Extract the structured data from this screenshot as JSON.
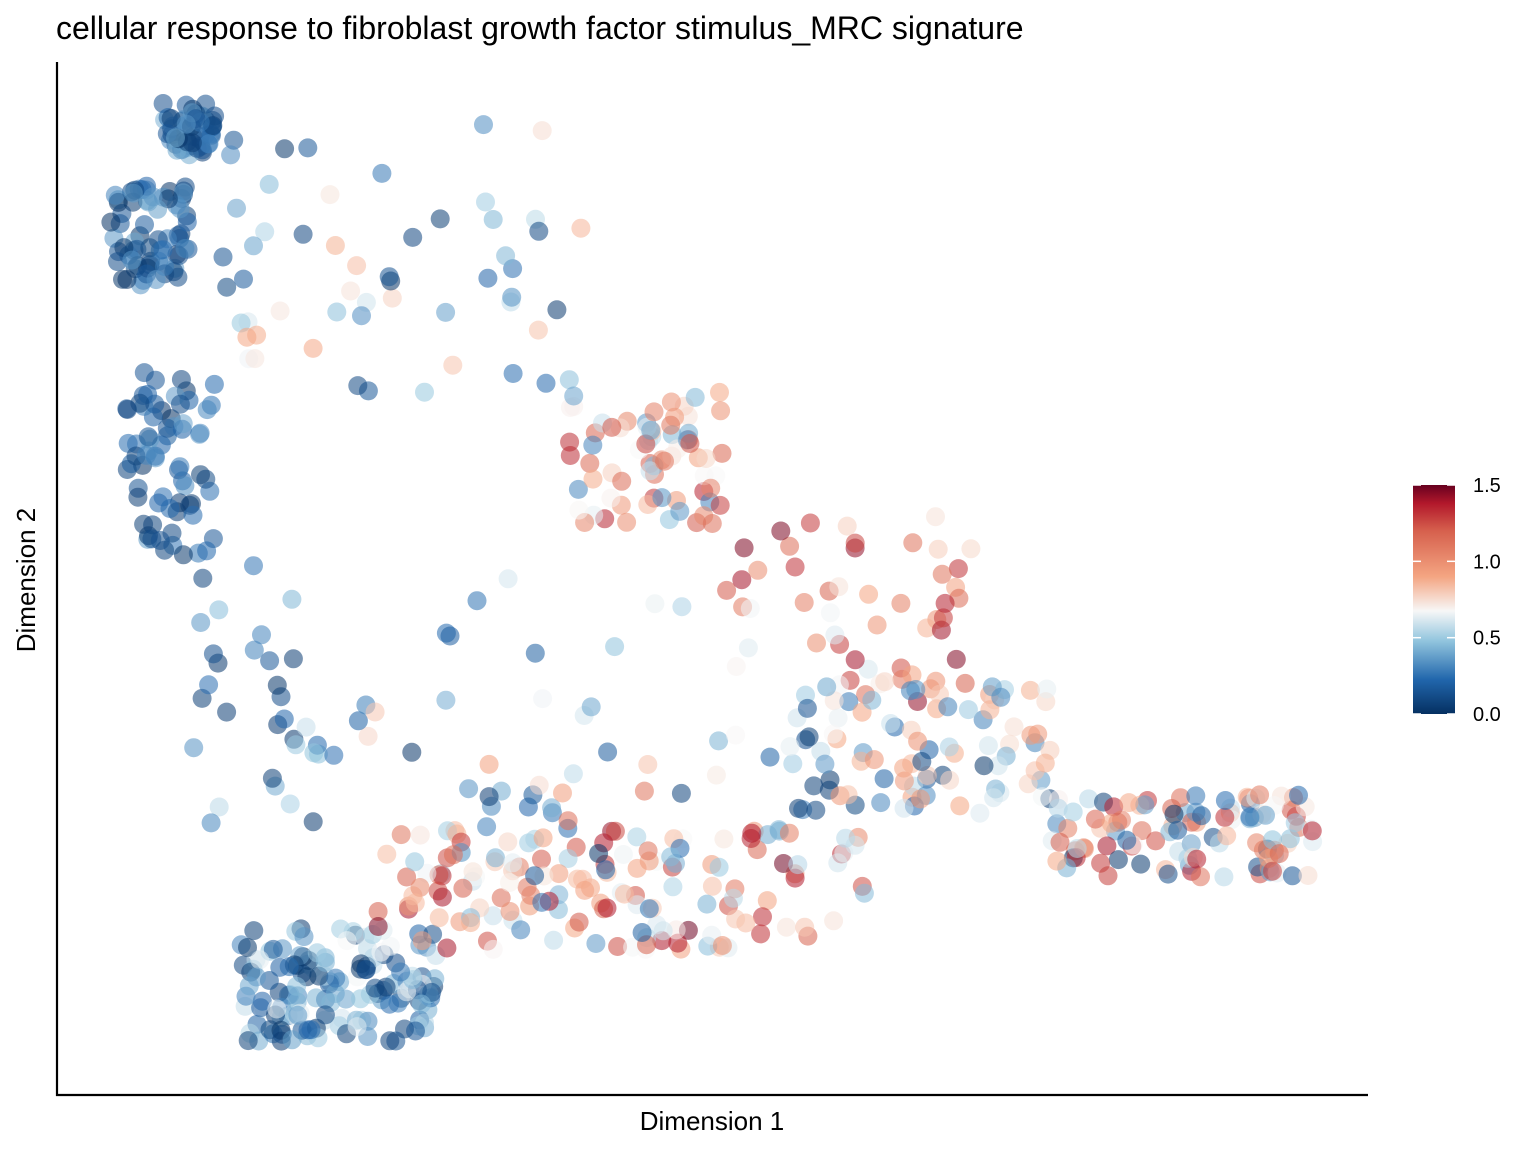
{
  "chart_data": {
    "type": "scatter",
    "title": "cellular response to fibroblast growth factor stimulus_MRC signature",
    "xlabel": "Dimension 1",
    "ylabel": "Dimension 2",
    "xlim": [
      0,
      100
    ],
    "ylim": [
      0,
      100
    ],
    "grid": false,
    "x_ticks_shown": false,
    "y_ticks_shown": false,
    "point_opacity": 0.55,
    "color_scale": {
      "name": "RdBu (reversed)",
      "min": 0.0,
      "max": 1.5,
      "ticks": [
        {
          "value": 0.0,
          "label": "0.0"
        },
        {
          "value": 0.5,
          "label": "0.5"
        },
        {
          "value": 1.0,
          "label": "1.0"
        },
        {
          "value": 1.5,
          "label": "1.5"
        }
      ],
      "stops": [
        {
          "t": 0.0,
          "color": "#053061"
        },
        {
          "t": 0.15,
          "color": "#2166ac"
        },
        {
          "t": 0.32,
          "color": "#92c5de"
        },
        {
          "t": 0.45,
          "color": "#f7f7f7"
        },
        {
          "t": 0.6,
          "color": "#f4a582"
        },
        {
          "t": 0.8,
          "color": "#d6604d"
        },
        {
          "t": 0.92,
          "color": "#b2182b"
        },
        {
          "t": 1.0,
          "color": "#67001f"
        }
      ],
      "legend_position": "right"
    },
    "regions": [
      {
        "desc": "top-left peak",
        "x": [
          8,
          12
        ],
        "y": [
          91,
          96
        ],
        "value_range": [
          0.0,
          0.45
        ],
        "n": 55
      },
      {
        "desc": "left column upper",
        "x": [
          4,
          10
        ],
        "y": [
          78,
          88
        ],
        "value_range": [
          0.0,
          0.4
        ],
        "n": 70
      },
      {
        "desc": "left column lower",
        "x": [
          5,
          12
        ],
        "y": [
          52,
          70
        ],
        "value_range": [
          0.0,
          0.4
        ],
        "n": 70
      },
      {
        "desc": "left sparse descent",
        "x": [
          10,
          20
        ],
        "y": [
          26,
          52
        ],
        "value_range": [
          0.0,
          0.6
        ],
        "n": 30
      },
      {
        "desc": "upper diagonal arm",
        "x": [
          12,
          40
        ],
        "y": [
          68,
          94
        ],
        "value_range": [
          0.0,
          0.9
        ],
        "n": 55
      },
      {
        "desc": "middle orange cluster",
        "x": [
          39,
          51
        ],
        "y": [
          55,
          68
        ],
        "value_range": [
          0.3,
          1.4
        ],
        "n": 70
      },
      {
        "desc": "upper arm to right tip",
        "x": [
          50,
          70
        ],
        "y": [
          38,
          56
        ],
        "value_range": [
          0.6,
          1.5
        ],
        "n": 50
      },
      {
        "desc": "right branch",
        "x": [
          56,
          76
        ],
        "y": [
          27,
          40
        ],
        "value_range": [
          0.0,
          1.0
        ],
        "n": 90
      },
      {
        "desc": "right tip",
        "x": [
          76,
          96
        ],
        "y": [
          21,
          29
        ],
        "value_range": [
          0.0,
          1.4
        ],
        "n": 110
      },
      {
        "desc": "bottom-left cluster",
        "x": [
          14,
          29
        ],
        "y": [
          5,
          16
        ],
        "value_range": [
          0.0,
          0.7
        ],
        "n": 150
      },
      {
        "desc": "bottom arm",
        "x": [
          24,
          62
        ],
        "y": [
          14,
          26
        ],
        "value_range": [
          0.4,
          1.5
        ],
        "n": 130
      },
      {
        "desc": "lower middle cloud",
        "x": [
          30,
          48
        ],
        "y": [
          14,
          30
        ],
        "value_range": [
          0.0,
          1.2
        ],
        "n": 45
      },
      {
        "desc": "central sparse",
        "x": [
          18,
          56
        ],
        "y": [
          30,
          52
        ],
        "value_range": [
          0.0,
          1.0
        ],
        "n": 30
      }
    ]
  }
}
